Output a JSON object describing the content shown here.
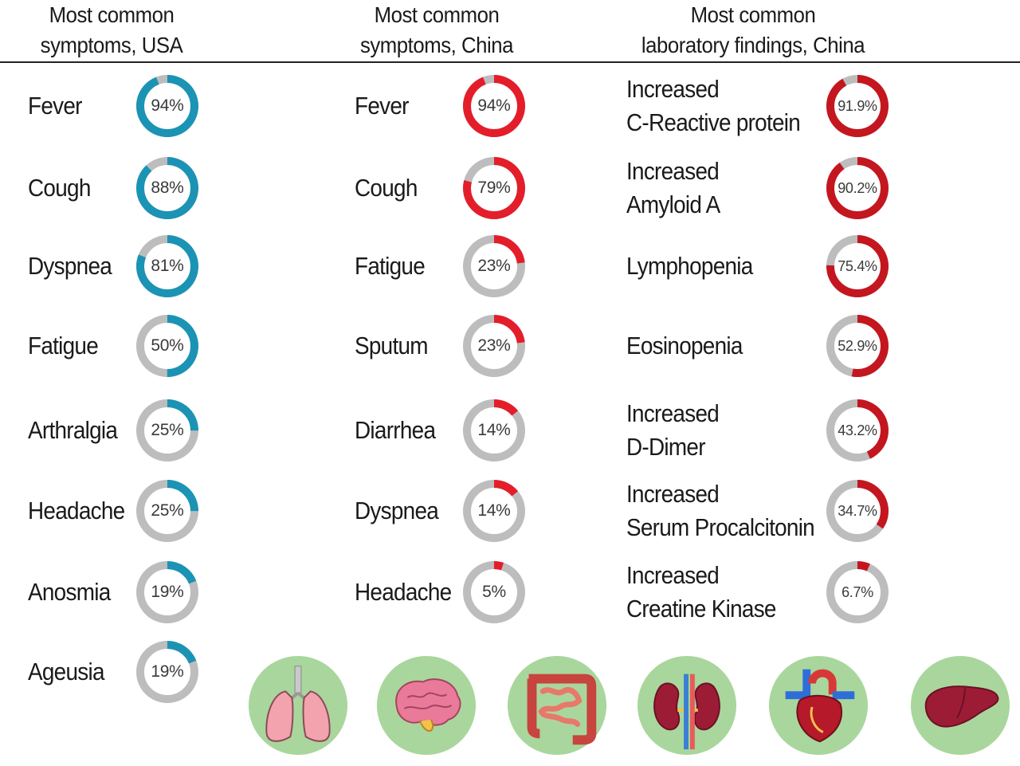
{
  "colors": {
    "usa_accent": "#1b93b4",
    "china_accent": "#e31e2a",
    "lab_accent": "#c4161f",
    "track": "#bdbdbd",
    "organ_bg": "#a9d69c"
  },
  "chart_data": [
    {
      "type": "donut",
      "title": "Most common symptoms, USA",
      "title_lines": [
        "Most common",
        "symptoms, USA"
      ],
      "categories": [
        "Fever",
        "Cough",
        "Dyspnea",
        "Fatigue",
        "Arthralgia",
        "Headache",
        "Anosmia",
        "Ageusia"
      ],
      "values": [
        94,
        88,
        81,
        50,
        25,
        25,
        19,
        19
      ],
      "value_labels": [
        "94%",
        "88%",
        "81%",
        "50%",
        "25%",
        "25%",
        "19%",
        "19%"
      ],
      "color": "#1b93b4"
    },
    {
      "type": "donut",
      "title": "Most common symptoms, China",
      "title_lines": [
        "Most common",
        "symptoms, China"
      ],
      "categories": [
        "Fever",
        "Cough",
        "Fatigue",
        "Sputum",
        "Diarrhea",
        "Dyspnea",
        "Headache"
      ],
      "values": [
        94,
        79,
        23,
        23,
        14,
        14,
        5
      ],
      "value_labels": [
        "94%",
        "79%",
        "23%",
        "23%",
        "14%",
        "14%",
        "5%"
      ],
      "color": "#e31e2a"
    },
    {
      "type": "donut",
      "title": "Most common laboratory findings, China",
      "title_lines": [
        "Most common",
        "laboratory findings, China"
      ],
      "categories": [
        "Increased C-Reactive protein",
        "Increased Amyloid A",
        "Lymphopenia",
        "Eosinopenia",
        "Increased D-Dimer",
        "Increased Serum Procalcitonin",
        "Increased Creatine Kinase"
      ],
      "category_lines": [
        [
          "Increased",
          "C-Reactive protein"
        ],
        [
          "Increased",
          "Amyloid A"
        ],
        [
          "Lymphopenia"
        ],
        [
          "Eosinopenia"
        ],
        [
          "Increased",
          "D-Dimer"
        ],
        [
          "Increased",
          "Serum Procalcitonin"
        ],
        [
          "Increased",
          "Creatine Kinase"
        ]
      ],
      "values": [
        91.9,
        90.2,
        75.4,
        52.9,
        43.2,
        34.7,
        6.7
      ],
      "value_labels": [
        "91.9%",
        "90.2%",
        "75.4%",
        "52.9%",
        "43.2%",
        "34.7%",
        "6.7%"
      ],
      "color": "#c4161f"
    }
  ],
  "organs": [
    "lungs-icon",
    "brain-icon",
    "intestines-icon",
    "kidneys-icon",
    "heart-icon",
    "liver-icon"
  ]
}
